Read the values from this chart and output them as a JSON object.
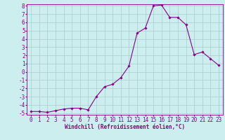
{
  "x": [
    0,
    1,
    2,
    3,
    4,
    5,
    6,
    7,
    8,
    9,
    10,
    11,
    12,
    13,
    14,
    15,
    16,
    17,
    18,
    19,
    20,
    21,
    22,
    23
  ],
  "y": [
    -4.8,
    -4.8,
    -4.9,
    -4.7,
    -4.5,
    -4.4,
    -4.4,
    -4.6,
    -3.0,
    -1.8,
    -1.5,
    -0.7,
    0.7,
    4.7,
    5.3,
    8.0,
    8.1,
    6.6,
    6.6,
    5.7,
    2.1,
    2.4,
    1.6,
    0.8
  ],
  "ylim": [
    -5,
    8
  ],
  "xlim": [
    0,
    23
  ],
  "yticks": [
    -5,
    -4,
    -3,
    -2,
    -1,
    0,
    1,
    2,
    3,
    4,
    5,
    6,
    7,
    8
  ],
  "xticks": [
    0,
    1,
    2,
    3,
    4,
    5,
    6,
    7,
    8,
    9,
    10,
    11,
    12,
    13,
    14,
    15,
    16,
    17,
    18,
    19,
    20,
    21,
    22,
    23
  ],
  "xlabel": "Windchill (Refroidissement éolien,°C)",
  "line_color": "#880088",
  "marker": "D",
  "marker_size": 1.8,
  "bg_color": "#cceeee",
  "grid_color": "#aacccc",
  "xlabel_fontsize": 5.5,
  "tick_fontsize": 5.5
}
